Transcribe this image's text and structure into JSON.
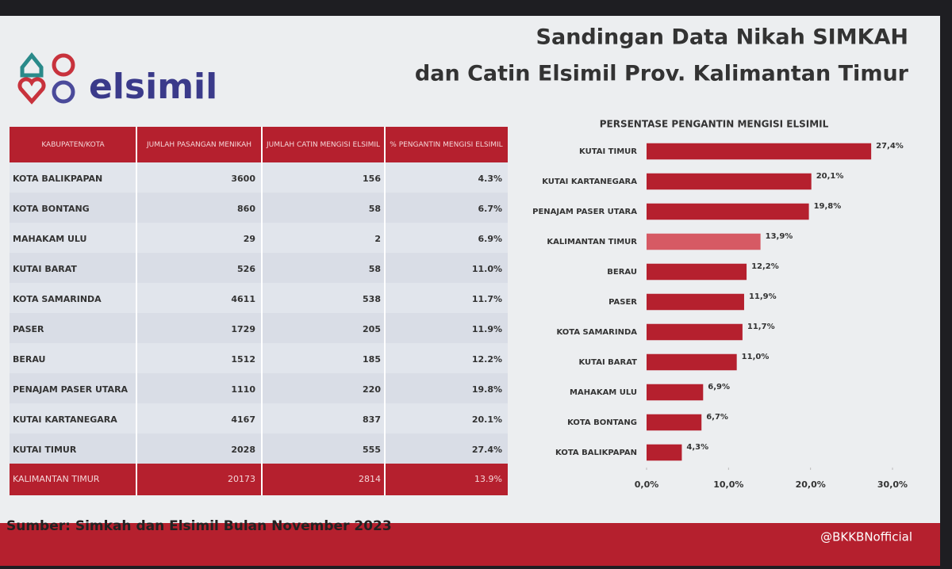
{
  "header": {
    "logo": "elsimil",
    "title_line1": "Sandingan Data Nikah SIMKAH",
    "title_line2": "dan Catin Elsimil Prov. Kalimantan Timur"
  },
  "table": {
    "columns": [
      "KABUPATEN/KOTA",
      "JUMLAH PASANGAN MENIKAH",
      "JUMLAH CATIN MENGISI ELSIMIL",
      "% PENGANTIN MENGISI ELSIMIL"
    ],
    "rows": [
      [
        "KOTA BALIKPAPAN",
        "3600",
        "156",
        "4.3%"
      ],
      [
        "KOTA BONTANG",
        "860",
        "58",
        "6.7%"
      ],
      [
        "MAHAKAM ULU",
        "29",
        "2",
        "6.9%"
      ],
      [
        "KUTAI BARAT",
        "526",
        "58",
        "11.0%"
      ],
      [
        "KOTA SAMARINDA",
        "4611",
        "538",
        "11.7%"
      ],
      [
        "PASER",
        "1729",
        "205",
        "11.9%"
      ],
      [
        "BERAU",
        "1512",
        "185",
        "12.2%"
      ],
      [
        "PENAJAM PASER UTARA",
        "1110",
        "220",
        "19.8%"
      ],
      [
        "KUTAI KARTANEGARA",
        "4167",
        "837",
        "20.1%"
      ],
      [
        "KUTAI TIMUR",
        "2028",
        "555",
        "27.4%"
      ]
    ],
    "total": [
      "KALIMANTAN TIMUR",
      "20173",
      "2814",
      "13.9%"
    ]
  },
  "chart_data": {
    "type": "hbar",
    "title": "PERSENTASE PENGANTIN MENGISI ELSIMIL",
    "categories": [
      "KUTAI TIMUR",
      "KUTAI KARTANEGARA",
      "PENAJAM PASER UTARA",
      "KALIMANTAN TIMUR",
      "BERAU",
      "PASER",
      "KOTA SAMARINDA",
      "KUTAI BARAT",
      "MAHAKAM ULU",
      "KOTA BONTANG",
      "KOTA BALIKPAPAN"
    ],
    "values": [
      27.4,
      20.1,
      19.8,
      13.9,
      12.2,
      11.9,
      11.7,
      11.0,
      6.9,
      6.7,
      4.3
    ],
    "value_labels": [
      "27,4%",
      "20,1%",
      "19,8%",
      "13,9%",
      "12,2%",
      "11,9%",
      "11,7%",
      "11,0%",
      "6,9%",
      "6,7%",
      "4,3%"
    ],
    "colors": [
      "#b5202e",
      "#b5202e",
      "#b5202e",
      "#d65a64",
      "#b5202e",
      "#b5202e",
      "#b5202e",
      "#b5202e",
      "#b5202e",
      "#b5202e",
      "#b5202e"
    ],
    "xlim": [
      0,
      30
    ],
    "xticks": [
      {
        "value": 0,
        "label": "0,0%"
      },
      {
        "value": 10,
        "label": "10,0%"
      },
      {
        "value": 20,
        "label": "20,0%"
      },
      {
        "value": 30,
        "label": "30,0%"
      }
    ]
  },
  "footer": {
    "source": "Sumber: Simkah dan Elsimil Bulan November 2023",
    "social": "@BKKBNofficial"
  }
}
